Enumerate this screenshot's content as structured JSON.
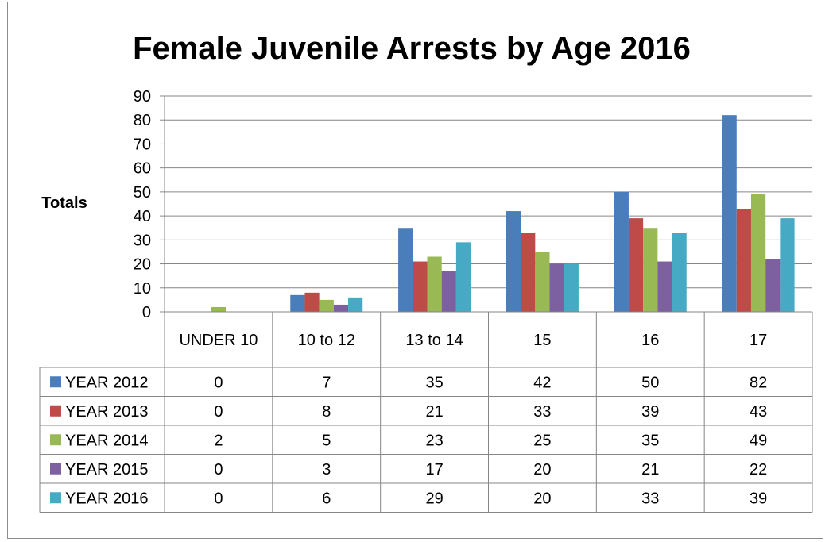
{
  "chart_data": {
    "type": "bar",
    "title": "Female Juvenile Arrests by Age 2016",
    "ylabel": "Totals",
    "xlabel": "",
    "ylim": [
      0,
      90
    ],
    "yticks": [
      0,
      10,
      20,
      30,
      40,
      50,
      60,
      70,
      80,
      90
    ],
    "grid": true,
    "legend": "data-table-left",
    "categories": [
      "UNDER 10",
      "10 to 12",
      "13 to 14",
      "15",
      "16",
      "17"
    ],
    "series": [
      {
        "name": "YEAR 2012",
        "color": "#4a7ebb",
        "values": [
          0,
          7,
          35,
          42,
          50,
          82
        ]
      },
      {
        "name": "YEAR 2013",
        "color": "#be4b48",
        "values": [
          0,
          8,
          21,
          33,
          39,
          43
        ]
      },
      {
        "name": "YEAR 2014",
        "color": "#98b954",
        "values": [
          2,
          5,
          23,
          25,
          35,
          49
        ]
      },
      {
        "name": "YEAR 2015",
        "color": "#7d60a0",
        "values": [
          0,
          3,
          17,
          20,
          21,
          22
        ]
      },
      {
        "name": "YEAR 2016",
        "color": "#46aac4",
        "values": [
          0,
          6,
          29,
          20,
          33,
          39
        ]
      }
    ]
  }
}
